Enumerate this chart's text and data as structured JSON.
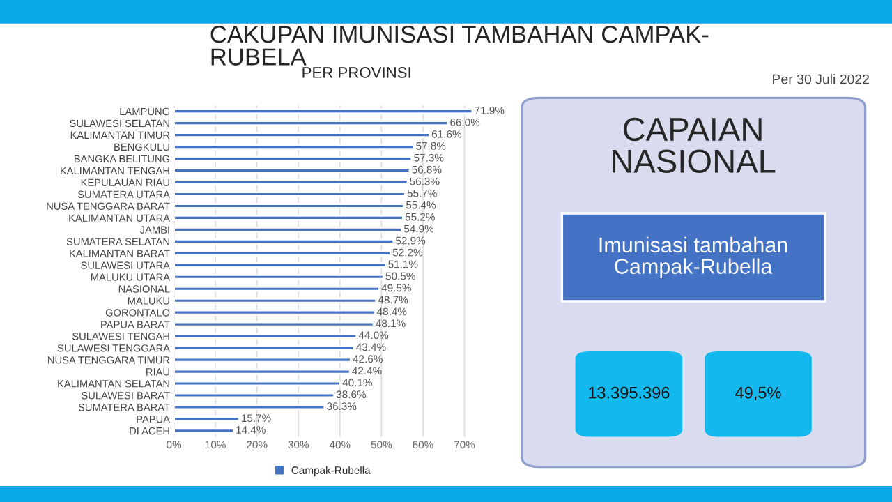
{
  "chart_data": [
    {
      "type": "bar",
      "orientation": "horizontal",
      "title": "CAKUPAN IMUNISASI TAMBAHAN CAMPAK-\nRUBELA",
      "subtitle": "PER PROVINSI",
      "annotations": [
        "Per 30 Juli 2022"
      ],
      "categories": [
        "LAMPUNG",
        "SULAWESI SELATAN",
        "KALIMANTAN TIMUR",
        "BENGKULU",
        "BANGKA BELITUNG",
        "KALIMANTAN TENGAH",
        "KEPULAUAN RIAU",
        "SUMATERA UTARA",
        "NUSA TENGGARA BARAT",
        "KALIMANTAN UTARA",
        "JAMBI",
        "SUMATERA SELATAN",
        "KALIMANTAN BARAT",
        "SULAWESI UTARA",
        "MALUKU UTARA",
        "NASIONAL",
        "MALUKU",
        "GORONTALO",
        "PAPUA BARAT",
        "SULAWESI TENGAH",
        "SULAWESI TENGGARA",
        "NUSA TENGGARA TIMUR",
        "RIAU",
        "KALIMANTAN SELATAN",
        "SULAWESI BARAT",
        "SUMATERA BARAT",
        "PAPUA",
        "DI ACEH"
      ],
      "series": [
        {
          "name": "Campak-Rubella",
          "color": "#4472c4",
          "values": [
            71.9,
            66.0,
            61.6,
            57.8,
            57.3,
            56.8,
            56.3,
            55.7,
            55.4,
            55.2,
            54.9,
            52.9,
            52.2,
            51.1,
            50.5,
            49.5,
            48.7,
            48.4,
            48.1,
            44.0,
            43.4,
            42.6,
            42.4,
            40.1,
            38.6,
            36.3,
            15.7,
            14.4
          ],
          "value_labels": [
            "71.9%",
            "66.0%",
            "61.6%",
            "57.8%",
            "57.3%",
            "56.8%",
            "56.3%",
            "55.7%",
            "55.4%",
            "55.2%",
            "54.9%",
            "52.9%",
            "52.2%",
            "51.1%",
            "50.5%",
            "49.5%",
            "48.7%",
            "48.4%",
            "48.1%",
            "44.0%",
            "43.4%",
            "42.6%",
            "42.4%",
            "40.1%",
            "38.6%",
            "36.3%",
            "15.7%",
            "14.4%"
          ]
        }
      ],
      "xlim": [
        0,
        72
      ],
      "xticks": [
        {
          "value": 0,
          "label": "0%"
        },
        {
          "value": 10,
          "label": "10%"
        },
        {
          "value": 20,
          "label": "20%"
        },
        {
          "value": 30,
          "label": "30%"
        },
        {
          "value": 40,
          "label": "40%"
        },
        {
          "value": 50,
          "label": "50%"
        },
        {
          "value": 60,
          "label": "60%"
        },
        {
          "value": 70,
          "label": "70%"
        }
      ],
      "grid": "x",
      "legend": "bottom"
    },
    {
      "type": "other",
      "title": "CAPAIAN\nNASIONAL",
      "subtitle": "Imunisasi tambahan\nCampak-Rubella",
      "annotations": [
        "13.395.396",
        "49,5%"
      ]
    }
  ]
}
